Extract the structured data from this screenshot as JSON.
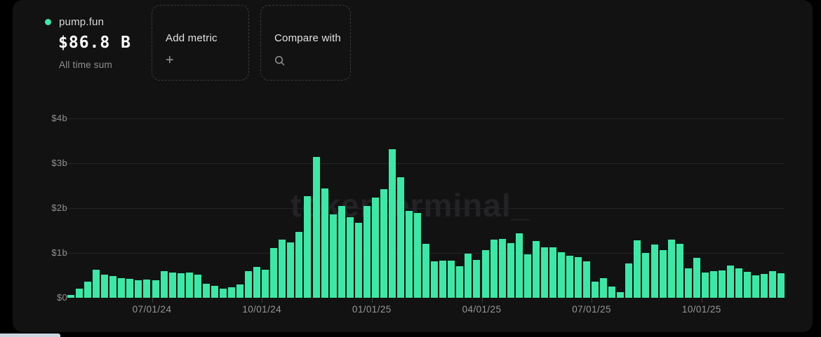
{
  "header": {
    "series": {
      "name": "pump.fun",
      "value": "$86.8 B",
      "caption": "All time sum"
    },
    "add_metric": {
      "label": "Add metric",
      "icon": "plus"
    },
    "compare_with": {
      "label": "Compare with",
      "icon": "search"
    }
  },
  "watermark": "tokenterminal_",
  "chart_data": {
    "type": "bar",
    "title": "pump.fun",
    "metric_total": "$86.8 B",
    "metric_caption": "All time sum",
    "unit": "USD billions",
    "bar_color": "#3be9a7",
    "grid": true,
    "legend_position": "top-left",
    "ylim": [
      0,
      4
    ],
    "y_tick_labels": [
      "$0",
      "$1b",
      "$2b",
      "$3b",
      "$4b"
    ],
    "x_tick_labels": [
      "07/01/24",
      "10/01/24",
      "01/01/25",
      "04/01/25",
      "07/01/25",
      "10/01/25"
    ],
    "x_tick_bar_indices": [
      10,
      23,
      36,
      49,
      62,
      75
    ],
    "values_billions": [
      0.07,
      0.21,
      0.36,
      0.63,
      0.52,
      0.48,
      0.44,
      0.42,
      0.39,
      0.4,
      0.39,
      0.6,
      0.57,
      0.55,
      0.57,
      0.52,
      0.31,
      0.26,
      0.21,
      0.23,
      0.29,
      0.59,
      0.68,
      0.63,
      1.11,
      1.3,
      1.23,
      1.47,
      2.27,
      3.14,
      2.43,
      1.86,
      2.04,
      1.8,
      1.67,
      2.04,
      2.24,
      2.42,
      3.32,
      2.69,
      1.93,
      1.89,
      1.2,
      0.82,
      0.83,
      0.83,
      0.7,
      0.99,
      0.85,
      1.07,
      1.29,
      1.32,
      1.22,
      1.43,
      0.97,
      1.27,
      1.13,
      1.13,
      1.02,
      0.94,
      0.9,
      0.82,
      0.36,
      0.43,
      0.25,
      0.12,
      0.77,
      1.28,
      1.0,
      1.18,
      1.07,
      1.3,
      1.2,
      0.65,
      0.89,
      0.56,
      0.59,
      0.61,
      0.72,
      0.66,
      0.58,
      0.5,
      0.53,
      0.6,
      0.55
    ]
  }
}
